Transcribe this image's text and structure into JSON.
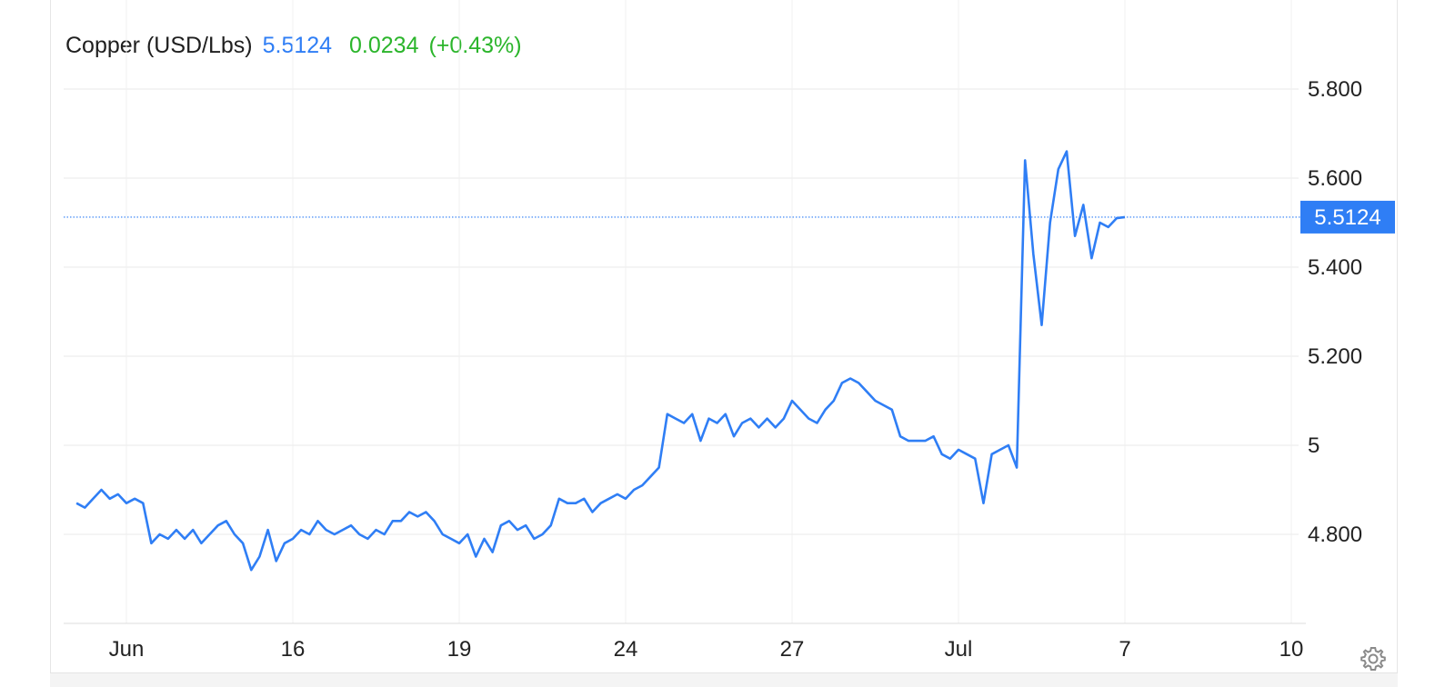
{
  "legend": {
    "name": "Copper (USD/Lbs)",
    "price": "5.5124",
    "change": "0.0234",
    "change_pct": "(+0.43%)"
  },
  "colors": {
    "line": "#2f7ef5",
    "up": "#2bb52b",
    "grid": "#e9e9e9",
    "text": "#222222"
  },
  "icons": {
    "settings": "gear-icon"
  },
  "chart_data": {
    "type": "line",
    "title": "Copper (USD/Lbs)",
    "xlabel": "",
    "ylabel": "",
    "ylim": [
      4.6,
      6.0
    ],
    "grid": true,
    "y_ticks": [
      {
        "value": 4.8,
        "label": "4.800"
      },
      {
        "value": 5.0,
        "label": "5"
      },
      {
        "value": 5.2,
        "label": "5.200"
      },
      {
        "value": 5.4,
        "label": "5.400"
      },
      {
        "value": 5.6,
        "label": "5.600"
      },
      {
        "value": 5.8,
        "label": "5.800"
      }
    ],
    "x_ticks": [
      {
        "t": 3,
        "label": "Jun"
      },
      {
        "t": 13,
        "label": "16"
      },
      {
        "t": 23,
        "label": "19"
      },
      {
        "t": 33,
        "label": "24"
      },
      {
        "t": 43,
        "label": "27"
      },
      {
        "t": 53,
        "label": "Jul"
      },
      {
        "t": 63,
        "label": "7"
      },
      {
        "t": 73,
        "label": "10"
      }
    ],
    "last_value": {
      "value": 5.5124,
      "label": "5.5124"
    },
    "series": [
      {
        "values": [
          [
            0.0,
            4.87
          ],
          [
            0.5,
            4.86
          ],
          [
            1.0,
            4.88
          ],
          [
            1.5,
            4.9
          ],
          [
            2.0,
            4.88
          ],
          [
            2.5,
            4.89
          ],
          [
            3.0,
            4.87
          ],
          [
            3.5,
            4.88
          ],
          [
            4.0,
            4.87
          ],
          [
            4.5,
            4.78
          ],
          [
            5.0,
            4.8
          ],
          [
            5.5,
            4.79
          ],
          [
            6.0,
            4.81
          ],
          [
            6.5,
            4.79
          ],
          [
            7.0,
            4.81
          ],
          [
            7.5,
            4.78
          ],
          [
            8.0,
            4.8
          ],
          [
            8.5,
            4.82
          ],
          [
            9.0,
            4.83
          ],
          [
            9.5,
            4.8
          ],
          [
            10.0,
            4.78
          ],
          [
            10.5,
            4.72
          ],
          [
            11.0,
            4.75
          ],
          [
            11.5,
            4.81
          ],
          [
            12.0,
            4.74
          ],
          [
            12.5,
            4.78
          ],
          [
            13.0,
            4.79
          ],
          [
            13.5,
            4.81
          ],
          [
            14.0,
            4.8
          ],
          [
            14.5,
            4.83
          ],
          [
            15.0,
            4.81
          ],
          [
            15.5,
            4.8
          ],
          [
            16.0,
            4.81
          ],
          [
            16.5,
            4.82
          ],
          [
            17.0,
            4.8
          ],
          [
            17.5,
            4.79
          ],
          [
            18.0,
            4.81
          ],
          [
            18.5,
            4.8
          ],
          [
            19.0,
            4.83
          ],
          [
            19.5,
            4.83
          ],
          [
            20.0,
            4.85
          ],
          [
            20.5,
            4.84
          ],
          [
            21.0,
            4.85
          ],
          [
            21.5,
            4.83
          ],
          [
            22.0,
            4.8
          ],
          [
            22.5,
            4.79
          ],
          [
            23.0,
            4.78
          ],
          [
            23.5,
            4.8
          ],
          [
            24.0,
            4.75
          ],
          [
            24.5,
            4.79
          ],
          [
            25.0,
            4.76
          ],
          [
            25.5,
            4.82
          ],
          [
            26.0,
            4.83
          ],
          [
            26.5,
            4.81
          ],
          [
            27.0,
            4.82
          ],
          [
            27.5,
            4.79
          ],
          [
            28.0,
            4.8
          ],
          [
            28.5,
            4.82
          ],
          [
            29.0,
            4.88
          ],
          [
            29.5,
            4.87
          ],
          [
            30.0,
            4.87
          ],
          [
            30.5,
            4.88
          ],
          [
            31.0,
            4.85
          ],
          [
            31.5,
            4.87
          ],
          [
            32.0,
            4.88
          ],
          [
            32.5,
            4.89
          ],
          [
            33.0,
            4.88
          ],
          [
            33.5,
            4.9
          ],
          [
            34.0,
            4.91
          ],
          [
            34.5,
            4.93
          ],
          [
            35.0,
            4.95
          ],
          [
            35.5,
            5.07
          ],
          [
            36.0,
            5.06
          ],
          [
            36.5,
            5.05
          ],
          [
            37.0,
            5.07
          ],
          [
            37.5,
            5.01
          ],
          [
            38.0,
            5.06
          ],
          [
            38.5,
            5.05
          ],
          [
            39.0,
            5.07
          ],
          [
            39.5,
            5.02
          ],
          [
            40.0,
            5.05
          ],
          [
            40.5,
            5.06
          ],
          [
            41.0,
            5.04
          ],
          [
            41.5,
            5.06
          ],
          [
            42.0,
            5.04
          ],
          [
            42.5,
            5.06
          ],
          [
            43.0,
            5.1
          ],
          [
            43.5,
            5.08
          ],
          [
            44.0,
            5.06
          ],
          [
            44.5,
            5.05
          ],
          [
            45.0,
            5.08
          ],
          [
            45.5,
            5.1
          ],
          [
            46.0,
            5.14
          ],
          [
            46.5,
            5.15
          ],
          [
            47.0,
            5.14
          ],
          [
            47.5,
            5.12
          ],
          [
            48.0,
            5.1
          ],
          [
            48.5,
            5.09
          ],
          [
            49.0,
            5.08
          ],
          [
            49.5,
            5.02
          ],
          [
            50.0,
            5.01
          ],
          [
            50.5,
            5.01
          ],
          [
            51.0,
            5.01
          ],
          [
            51.5,
            5.02
          ],
          [
            52.0,
            4.98
          ],
          [
            52.5,
            4.97
          ],
          [
            53.0,
            4.99
          ],
          [
            53.5,
            4.98
          ],
          [
            54.0,
            4.97
          ],
          [
            54.5,
            4.87
          ],
          [
            55.0,
            4.98
          ],
          [
            55.5,
            4.99
          ],
          [
            56.0,
            5.0
          ],
          [
            56.5,
            4.95
          ],
          [
            57.0,
            5.64
          ],
          [
            57.5,
            5.43
          ],
          [
            58.0,
            5.27
          ],
          [
            58.5,
            5.5
          ],
          [
            59.0,
            5.62
          ],
          [
            59.5,
            5.66
          ],
          [
            60.0,
            5.47
          ],
          [
            60.5,
            5.54
          ],
          [
            61.0,
            5.42
          ],
          [
            61.5,
            5.5
          ],
          [
            62.0,
            5.49
          ],
          [
            62.5,
            5.51
          ],
          [
            63.0,
            5.5124
          ]
        ]
      }
    ]
  }
}
